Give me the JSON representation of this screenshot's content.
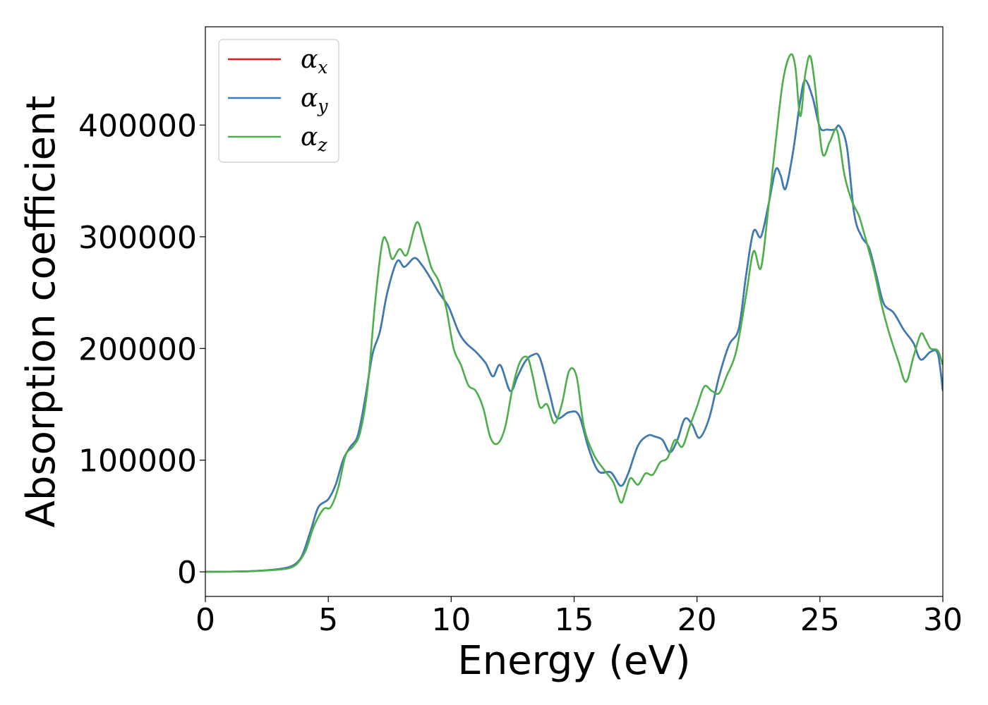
{
  "chart_data": {
    "type": "line",
    "xlabel": "Energy (eV)",
    "ylabel": "Absorption coefficient",
    "xlim": [
      0,
      30
    ],
    "ylim": [
      -22000,
      488000
    ],
    "grid": false,
    "legend_position": "top-left",
    "x_ticks": [
      0,
      5,
      10,
      15,
      20,
      25,
      30
    ],
    "x_tick_labels": [
      "0",
      "5",
      "10",
      "15",
      "20",
      "25",
      "30"
    ],
    "y_ticks": [
      0,
      100000,
      200000,
      300000,
      400000
    ],
    "y_tick_labels": [
      "0",
      "100000",
      "200000",
      "300000",
      "400000"
    ],
    "series": [
      {
        "name": "αx",
        "symbol": "α",
        "subscript": "x",
        "color": "#e41a1c",
        "x": [
          0,
          1,
          2,
          3,
          3.5,
          3.8,
          4.0,
          4.3,
          4.6,
          5.0,
          5.3,
          5.6,
          5.9,
          6.2,
          6.5,
          6.8,
          7.1,
          7.4,
          7.8,
          8.1,
          8.5,
          8.8,
          9.1,
          9.5,
          9.9,
          10.3,
          10.6,
          11.0,
          11.4,
          11.7,
          12.0,
          12.4,
          12.7,
          13.0,
          13.3,
          13.6,
          14.0,
          14.3,
          14.8,
          15.2,
          15.6,
          16.0,
          16.5,
          16.9,
          17.2,
          17.6,
          18.0,
          18.3,
          18.6,
          18.9,
          19.2,
          19.5,
          19.8,
          20.1,
          20.5,
          20.9,
          21.3,
          21.7,
          22.0,
          22.3,
          22.6,
          22.9,
          23.2,
          23.4,
          23.6,
          23.9,
          24.2,
          24.4,
          24.7,
          25.0,
          25.3,
          25.6,
          25.8,
          26.1,
          26.4,
          26.7,
          27.0,
          27.3,
          27.6,
          28.0,
          28.4,
          28.8,
          29.1,
          29.5,
          29.8,
          30.0
        ],
        "y": [
          0,
          200,
          800,
          2500,
          5000,
          10000,
          18000,
          38000,
          58000,
          65000,
          78000,
          100000,
          112000,
          122000,
          155000,
          195000,
          215000,
          250000,
          278000,
          273000,
          281000,
          275000,
          265000,
          250000,
          237000,
          215000,
          205000,
          197000,
          187000,
          175000,
          185000,
          162000,
          175000,
          188000,
          194000,
          192000,
          160000,
          138000,
          143000,
          140000,
          110000,
          90000,
          89000,
          77000,
          88000,
          113000,
          122000,
          121000,
          118000,
          107000,
          118000,
          137000,
          132000,
          120000,
          138000,
          175000,
          203000,
          218000,
          266000,
          305000,
          300000,
          328000,
          360000,
          355000,
          343000,
          375000,
          422000,
          440000,
          425000,
          398000,
          396000,
          396000,
          399000,
          380000,
          320000,
          300000,
          290000,
          265000,
          240000,
          232000,
          217000,
          205000,
          190000,
          197000,
          195000,
          162000
        ]
      },
      {
        "name": "αy",
        "symbol": "α",
        "subscript": "y",
        "color": "#377eb8",
        "x": [
          0,
          1,
          2,
          3,
          3.5,
          3.8,
          4.0,
          4.3,
          4.6,
          5.0,
          5.3,
          5.6,
          5.9,
          6.2,
          6.5,
          6.8,
          7.1,
          7.4,
          7.8,
          8.1,
          8.5,
          8.8,
          9.1,
          9.5,
          9.9,
          10.3,
          10.6,
          11.0,
          11.4,
          11.7,
          12.0,
          12.4,
          12.7,
          13.0,
          13.3,
          13.6,
          14.0,
          14.3,
          14.8,
          15.2,
          15.6,
          16.0,
          16.5,
          16.9,
          17.2,
          17.6,
          18.0,
          18.3,
          18.6,
          18.9,
          19.2,
          19.5,
          19.8,
          20.1,
          20.5,
          20.9,
          21.3,
          21.7,
          22.0,
          22.3,
          22.6,
          22.9,
          23.2,
          23.4,
          23.6,
          23.9,
          24.2,
          24.4,
          24.7,
          25.0,
          25.3,
          25.6,
          25.8,
          26.1,
          26.4,
          26.7,
          27.0,
          27.3,
          27.6,
          28.0,
          28.4,
          28.8,
          29.1,
          29.5,
          29.8,
          30.0
        ],
        "y": [
          0,
          200,
          800,
          2500,
          5000,
          10000,
          18000,
          38000,
          58000,
          65000,
          78000,
          100000,
          112000,
          122000,
          155000,
          195000,
          215000,
          250000,
          278000,
          273000,
          281000,
          275000,
          265000,
          250000,
          237000,
          215000,
          205000,
          197000,
          187000,
          175000,
          185000,
          162000,
          175000,
          188000,
          194000,
          192000,
          160000,
          138000,
          143000,
          140000,
          110000,
          90000,
          89000,
          77000,
          88000,
          113000,
          122000,
          121000,
          118000,
          107000,
          118000,
          137000,
          132000,
          120000,
          138000,
          175000,
          203000,
          218000,
          266000,
          305000,
          300000,
          328000,
          360000,
          355000,
          343000,
          375000,
          422000,
          440000,
          425000,
          398000,
          396000,
          396000,
          399000,
          380000,
          320000,
          300000,
          290000,
          265000,
          240000,
          232000,
          217000,
          205000,
          190000,
          197000,
          195000,
          162000
        ]
      },
      {
        "name": "αz",
        "symbol": "α",
        "subscript": "z",
        "color": "#4daf4a",
        "x": [
          0,
          1,
          2,
          3,
          3.5,
          3.8,
          4.1,
          4.4,
          4.8,
          5.1,
          5.4,
          5.7,
          6.0,
          6.3,
          6.6,
          6.9,
          7.2,
          7.4,
          7.6,
          7.9,
          8.2,
          8.6,
          8.9,
          9.2,
          9.5,
          9.8,
          10.1,
          10.4,
          10.7,
          11.0,
          11.3,
          11.6,
          11.9,
          12.2,
          12.5,
          12.8,
          13.1,
          13.3,
          13.6,
          13.9,
          14.2,
          14.5,
          14.8,
          15.1,
          15.4,
          15.8,
          16.2,
          16.6,
          16.9,
          17.1,
          17.3,
          17.6,
          17.9,
          18.2,
          18.5,
          18.8,
          19.1,
          19.4,
          19.7,
          20.0,
          20.3,
          20.6,
          20.9,
          21.2,
          21.6,
          22.0,
          22.3,
          22.6,
          22.9,
          23.2,
          23.5,
          23.8,
          24.0,
          24.2,
          24.4,
          24.6,
          24.8,
          25.1,
          25.4,
          25.7,
          26.0,
          26.3,
          26.6,
          26.9,
          27.2,
          27.5,
          27.8,
          28.2,
          28.5,
          28.8,
          29.1,
          29.3,
          29.5,
          29.8,
          30.0
        ],
        "y": [
          0,
          200,
          800,
          2000,
          4000,
          9000,
          20000,
          40000,
          56000,
          58000,
          75000,
          104000,
          112000,
          125000,
          165000,
          240000,
          295000,
          295000,
          280000,
          289000,
          284000,
          313000,
          295000,
          272000,
          260000,
          236000,
          200000,
          185000,
          167000,
          162000,
          147000,
          120000,
          115000,
          130000,
          165000,
          188000,
          192000,
          177000,
          148000,
          150000,
          133000,
          150000,
          180000,
          175000,
          130000,
          105000,
          92000,
          80000,
          62000,
          72000,
          84000,
          78000,
          88000,
          87000,
          98000,
          102000,
          118000,
          112000,
          130000,
          148000,
          166000,
          162000,
          160000,
          175000,
          198000,
          248000,
          287000,
          272000,
          325000,
          385000,
          440000,
          463000,
          452000,
          408000,
          445000,
          462000,
          435000,
          375000,
          385000,
          395000,
          355000,
          332000,
          318000,
          295000,
          270000,
          240000,
          215000,
          188000,
          170000,
          192000,
          213000,
          208000,
          200000,
          198000,
          185000
        ]
      }
    ]
  }
}
